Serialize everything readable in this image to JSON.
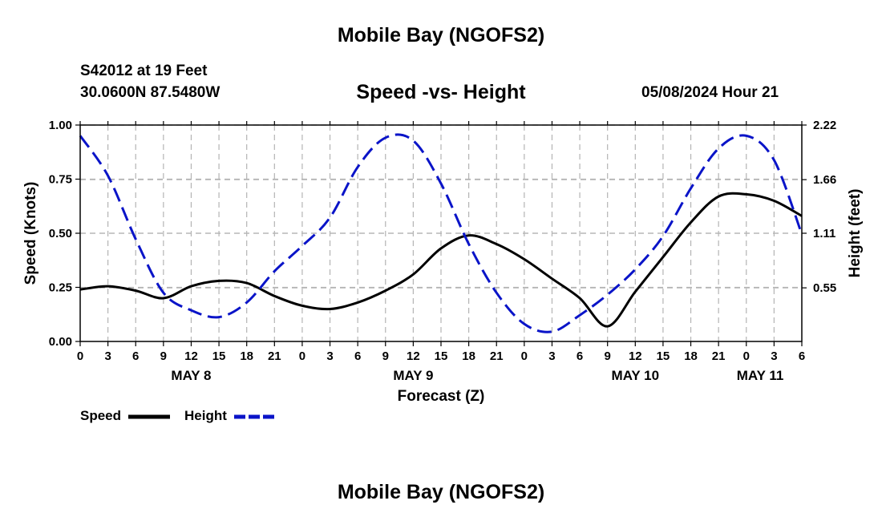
{
  "header": {
    "title": "Mobile Bay (NGOFS2)",
    "station": "S42012 at 19 Feet",
    "coords": "30.0600N  87.5480W",
    "subtitle": "Speed -vs- Height",
    "datetime": "05/08/2024 Hour 21"
  },
  "footer": {
    "title": "Mobile Bay (NGOFS2)"
  },
  "legend": {
    "speed_label": "Speed",
    "height_label": "Height"
  },
  "colors": {
    "speed": "#000000",
    "height": "#0a14c8",
    "grid": "#b4b4b4"
  },
  "chart_data": {
    "type": "line",
    "title": "Speed -vs- Height",
    "xlabel": "Forecast (Z)",
    "ylabel": "Speed (Knots)",
    "y2label": "Height (feet)",
    "xlim": [
      0,
      78
    ],
    "ylim": [
      0,
      1.0
    ],
    "y2lim": [
      0,
      2.22
    ],
    "grid": true,
    "legend_position": "bottom-left",
    "x_tick_labels": [
      "0",
      "3",
      "6",
      "9",
      "12",
      "15",
      "18",
      "21",
      "0",
      "3",
      "6",
      "9",
      "12",
      "15",
      "18",
      "21",
      "0",
      "3",
      "6",
      "9",
      "12",
      "15",
      "18",
      "21",
      "0",
      "3",
      "6"
    ],
    "date_labels": [
      {
        "label": "MAY 8",
        "x": 12
      },
      {
        "label": "MAY 9",
        "x": 36
      },
      {
        "label": "MAY 10",
        "x": 60
      },
      {
        "label": "MAY 11",
        "x": 73.5
      }
    ],
    "y_ticks": [
      "0.00",
      "0.25",
      "0.50",
      "0.75",
      "1.00"
    ],
    "y2_ticks": [
      "0.55",
      "1.11",
      "1.66",
      "2.22"
    ],
    "series": [
      {
        "name": "Speed",
        "axis": "left",
        "x": [
          0,
          3,
          6,
          9,
          12,
          15,
          18,
          21,
          24,
          27,
          30,
          33,
          36,
          39,
          42,
          45,
          48,
          51,
          54,
          57,
          60,
          63,
          66,
          69,
          72,
          75,
          78
        ],
        "y": [
          0.24,
          0.255,
          0.235,
          0.2,
          0.255,
          0.28,
          0.27,
          0.21,
          0.165,
          0.15,
          0.18,
          0.235,
          0.31,
          0.43,
          0.49,
          0.45,
          0.38,
          0.29,
          0.2,
          0.07,
          0.23,
          0.39,
          0.55,
          0.67,
          0.68,
          0.65,
          0.58
        ]
      },
      {
        "name": "Height",
        "axis": "right",
        "x": [
          0,
          3,
          6,
          9,
          12,
          15,
          18,
          21,
          24,
          27,
          30,
          33,
          36,
          39,
          42,
          45,
          48,
          51,
          54,
          57,
          60,
          63,
          66,
          69,
          72,
          75,
          78
        ],
        "y": [
          2.11,
          1.7,
          1.05,
          0.5,
          0.32,
          0.25,
          0.4,
          0.72,
          0.98,
          1.27,
          1.79,
          2.09,
          2.06,
          1.62,
          1.0,
          0.5,
          0.18,
          0.1,
          0.27,
          0.48,
          0.74,
          1.08,
          1.57,
          1.98,
          2.11,
          1.86,
          1.1
        ]
      }
    ]
  }
}
